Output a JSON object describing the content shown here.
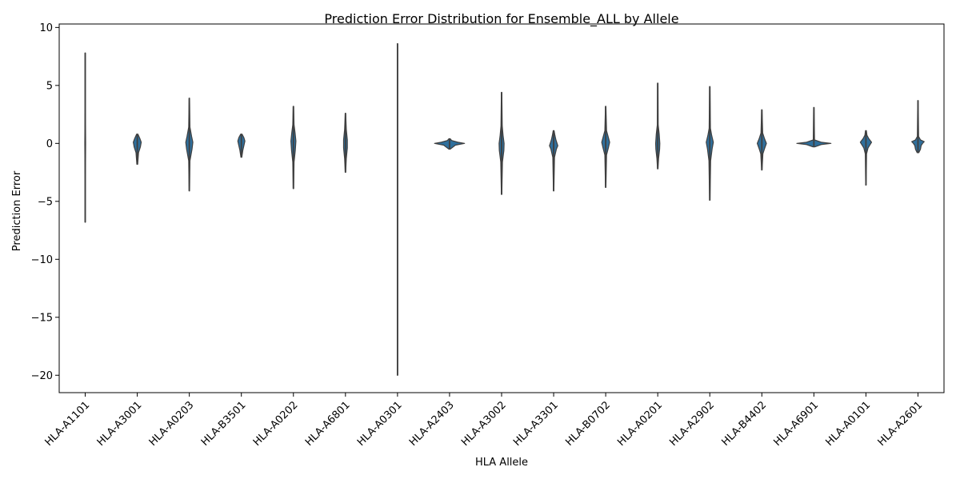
{
  "colors": {
    "violin_fill": "#2f6f9c",
    "violin_edge": "#3f3f3f",
    "axis": "#000000"
  },
  "chart_data": {
    "type": "violin",
    "title": "Prediction Error Distribution for Ensemble_ALL by Allele",
    "xlabel": "HLA Allele",
    "ylabel": "Prediction Error",
    "ylim": [
      -21.5,
      10.3
    ],
    "yticks": [
      -20,
      -15,
      -10,
      -5,
      0,
      5,
      10
    ],
    "ytick_labels": [
      "−20",
      "−15",
      "−10",
      "−5",
      "0",
      "5",
      "10"
    ],
    "grid": false,
    "legend": "none",
    "categories": [
      "HLA-A1101",
      "HLA-A3001",
      "HLA-A0203",
      "HLA-B3501",
      "HLA-A0202",
      "HLA-A6801",
      "HLA-A0301",
      "HLA-A2403",
      "HLA-A3002",
      "HLA-A3301",
      "HLA-B0702",
      "HLA-A0201",
      "HLA-A2902",
      "HLA-B4402",
      "HLA-A6901",
      "HLA-A0101",
      "HLA-A2601"
    ],
    "violins": [
      {
        "category": "HLA-A1101",
        "min": -6.8,
        "max": 7.8,
        "shape": [
          [
            -6.8,
            0.01
          ],
          [
            -3,
            0.01
          ],
          [
            0,
            0.02
          ],
          [
            3,
            0.01
          ],
          [
            7.8,
            0.01
          ]
        ]
      },
      {
        "category": "HLA-A3001",
        "min": -1.8,
        "max": 0.8,
        "shape": [
          [
            -1.8,
            0.02
          ],
          [
            -0.8,
            0.06
          ],
          [
            -0.3,
            0.15
          ],
          [
            0.1,
            0.19
          ],
          [
            0.4,
            0.13
          ],
          [
            0.8,
            0.03
          ]
        ]
      },
      {
        "category": "HLA-A0203",
        "min": -4.1,
        "max": 3.9,
        "shape": [
          [
            -4.1,
            0.01
          ],
          [
            -1.5,
            0.03
          ],
          [
            -0.5,
            0.13
          ],
          [
            0.1,
            0.17
          ],
          [
            0.6,
            0.11
          ],
          [
            1.4,
            0.03
          ],
          [
            3.9,
            0.01
          ]
        ]
      },
      {
        "category": "HLA-B3501",
        "min": -1.2,
        "max": 0.8,
        "shape": [
          [
            -1.2,
            0.02
          ],
          [
            -0.6,
            0.07
          ],
          [
            -0.2,
            0.12
          ],
          [
            0.2,
            0.17
          ],
          [
            0.5,
            0.12
          ],
          [
            0.8,
            0.03
          ]
        ]
      },
      {
        "category": "HLA-A0202",
        "min": -3.9,
        "max": 3.2,
        "shape": [
          [
            -3.9,
            0.01
          ],
          [
            -1.6,
            0.03
          ],
          [
            -0.6,
            0.09
          ],
          [
            0.2,
            0.12
          ],
          [
            0.9,
            0.08
          ],
          [
            1.6,
            0.03
          ],
          [
            3.2,
            0.01
          ]
        ]
      },
      {
        "category": "HLA-A6801",
        "min": -2.5,
        "max": 2.6,
        "shape": [
          [
            -2.5,
            0.01
          ],
          [
            -1.3,
            0.04
          ],
          [
            -0.4,
            0.09
          ],
          [
            0.3,
            0.09
          ],
          [
            1.2,
            0.04
          ],
          [
            2.6,
            0.01
          ]
        ]
      },
      {
        "category": "HLA-A0301",
        "min": -20.0,
        "max": 8.6,
        "shape": [
          [
            -20,
            0.01
          ],
          [
            -10,
            0.01
          ],
          [
            0,
            0.01
          ],
          [
            8.6,
            0.01
          ]
        ]
      },
      {
        "category": "HLA-A2403",
        "min": -0.5,
        "max": 0.4,
        "shape": [
          [
            -0.5,
            0.03
          ],
          [
            -0.15,
            0.28
          ],
          [
            0,
            0.72
          ],
          [
            0.1,
            0.4
          ],
          [
            0.25,
            0.1
          ],
          [
            0.4,
            0.03
          ]
        ]
      },
      {
        "category": "HLA-A3002",
        "min": -4.4,
        "max": 4.4,
        "shape": [
          [
            -4.4,
            0.01
          ],
          [
            -1.6,
            0.04
          ],
          [
            -0.6,
            0.11
          ],
          [
            0,
            0.12
          ],
          [
            0.7,
            0.07
          ],
          [
            1.5,
            0.03
          ],
          [
            4.4,
            0.01
          ]
        ]
      },
      {
        "category": "HLA-A3301",
        "min": -4.1,
        "max": 1.1,
        "shape": [
          [
            -4.1,
            0.01
          ],
          [
            -1.2,
            0.04
          ],
          [
            -0.5,
            0.13
          ],
          [
            -0.2,
            0.2
          ],
          [
            0.3,
            0.11
          ],
          [
            0.7,
            0.06
          ],
          [
            1.1,
            0.02
          ]
        ]
      },
      {
        "category": "HLA-B0702",
        "min": -3.8,
        "max": 3.2,
        "shape": [
          [
            -3.8,
            0.01
          ],
          [
            -1,
            0.04
          ],
          [
            -0.3,
            0.14
          ],
          [
            0.1,
            0.19
          ],
          [
            0.5,
            0.13
          ],
          [
            1.1,
            0.04
          ],
          [
            3.2,
            0.01
          ]
        ]
      },
      {
        "category": "HLA-A0201",
        "min": -2.2,
        "max": 5.2,
        "shape": [
          [
            -2.2,
            0.01
          ],
          [
            -1.3,
            0.04
          ],
          [
            -0.5,
            0.09
          ],
          [
            0,
            0.1
          ],
          [
            0.8,
            0.07
          ],
          [
            1.6,
            0.02
          ],
          [
            5.2,
            0.01
          ]
        ]
      },
      {
        "category": "HLA-A2902",
        "min": -4.9,
        "max": 4.9,
        "shape": [
          [
            -4.9,
            0.01
          ],
          [
            -1.5,
            0.04
          ],
          [
            -0.5,
            0.11
          ],
          [
            0.1,
            0.17
          ],
          [
            0.7,
            0.09
          ],
          [
            1.3,
            0.03
          ],
          [
            4.9,
            0.01
          ]
        ]
      },
      {
        "category": "HLA-B4402",
        "min": -2.3,
        "max": 2.9,
        "shape": [
          [
            -2.3,
            0.01
          ],
          [
            -0.9,
            0.05
          ],
          [
            -0.4,
            0.14
          ],
          [
            0,
            0.22
          ],
          [
            0.4,
            0.13
          ],
          [
            0.9,
            0.04
          ],
          [
            2.9,
            0.01
          ]
        ]
      },
      {
        "category": "HLA-A6901",
        "min": -0.3,
        "max": 3.1,
        "shape": [
          [
            -0.3,
            0.04
          ],
          [
            -0.1,
            0.35
          ],
          [
            0,
            0.82
          ],
          [
            0.1,
            0.35
          ],
          [
            0.3,
            0.03
          ],
          [
            3.1,
            0.01
          ]
        ]
      },
      {
        "category": "HLA-A0101",
        "min": -3.6,
        "max": 1.1,
        "shape": [
          [
            -3.6,
            0.01
          ],
          [
            -0.9,
            0.03
          ],
          [
            -0.4,
            0.1
          ],
          [
            -0.1,
            0.2
          ],
          [
            0.1,
            0.27
          ],
          [
            0.4,
            0.14
          ],
          [
            0.7,
            0.05
          ],
          [
            1.1,
            0.02
          ]
        ]
      },
      {
        "category": "HLA-A2601",
        "min": -0.8,
        "max": 3.7,
        "shape": [
          [
            -0.8,
            0.04
          ],
          [
            -0.5,
            0.12
          ],
          [
            -0.2,
            0.15
          ],
          [
            0,
            0.22
          ],
          [
            0.15,
            0.3
          ],
          [
            0.3,
            0.12
          ],
          [
            0.6,
            0.03
          ],
          [
            3.7,
            0.01
          ]
        ]
      }
    ]
  }
}
